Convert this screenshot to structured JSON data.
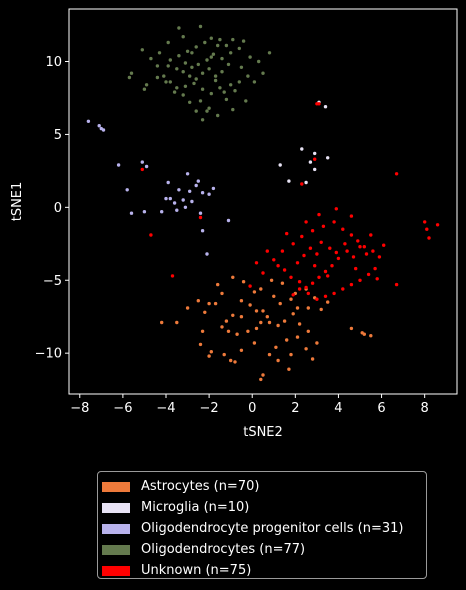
{
  "chart_data": {
    "type": "scatter",
    "xlabel": "tSNE2",
    "ylabel": "tSNE1",
    "xlim": [
      -8.5,
      9.5
    ],
    "ylim": [
      -12.8,
      13.6
    ],
    "xticks": [
      -8,
      -6,
      -4,
      -2,
      0,
      2,
      4,
      6,
      8
    ],
    "yticks": [
      -10,
      -5,
      0,
      5,
      10
    ],
    "legend_position": "below",
    "series": [
      {
        "name": "Astrocytes (n=70)",
        "color": "#ee7a3b",
        "points": [
          [
            0.5,
            -11.5
          ],
          [
            0.4,
            -11.8
          ],
          [
            -0.8,
            -10.6
          ],
          [
            -1.3,
            -10.1
          ],
          [
            -1.0,
            -10.5
          ],
          [
            -2.0,
            -10.2
          ],
          [
            -1.9,
            -9.9
          ],
          [
            -2.4,
            -9.4
          ],
          [
            -3.5,
            -7.9
          ],
          [
            -4.2,
            -7.9
          ],
          [
            -3.0,
            -6.9
          ],
          [
            -2.2,
            -7.2
          ],
          [
            -2.0,
            -6.6
          ],
          [
            -1.7,
            -6.6
          ],
          [
            -1.4,
            -5.9
          ],
          [
            -0.9,
            -4.8
          ],
          [
            -0.4,
            -5.1
          ],
          [
            0.1,
            -5.8
          ],
          [
            0.4,
            -5.6
          ],
          [
            0.9,
            -5.0
          ],
          [
            1.0,
            -6.1
          ],
          [
            1.3,
            -6.6
          ],
          [
            -0.5,
            -6.4
          ],
          [
            -0.1,
            -6.7
          ],
          [
            0.2,
            -7.1
          ],
          [
            0.5,
            -7.1
          ],
          [
            0.7,
            -7.5
          ],
          [
            -0.5,
            -7.5
          ],
          [
            -0.9,
            -7.4
          ],
          [
            -1.2,
            -7.8
          ],
          [
            -1.4,
            -8.2
          ],
          [
            -1.1,
            -8.5
          ],
          [
            -0.7,
            -8.7
          ],
          [
            -0.2,
            -8.5
          ],
          [
            0.2,
            -8.3
          ],
          [
            0.4,
            -7.9
          ],
          [
            0.8,
            -7.9
          ],
          [
            1.2,
            -8.1
          ],
          [
            1.5,
            -7.8
          ],
          [
            1.9,
            -7.3
          ],
          [
            2.1,
            -6.9
          ],
          [
            2.6,
            -6.9
          ],
          [
            3.2,
            -7.0
          ],
          [
            3.5,
            -6.5
          ],
          [
            2.9,
            -6.2
          ],
          [
            2.5,
            -5.6
          ],
          [
            2.0,
            -5.9
          ],
          [
            1.4,
            -5.2
          ],
          [
            1.8,
            -6.3
          ],
          [
            2.2,
            -8.0
          ],
          [
            2.6,
            -8.5
          ],
          [
            2.1,
            -8.9
          ],
          [
            1.6,
            -9.1
          ],
          [
            1.1,
            -9.6
          ],
          [
            0.8,
            -10.1
          ],
          [
            1.2,
            -10.5
          ],
          [
            1.8,
            -10.1
          ],
          [
            2.5,
            -9.7
          ],
          [
            2.8,
            -10.4
          ],
          [
            1.7,
            -11.1
          ],
          [
            -2.5,
            -6.4
          ],
          [
            -1.6,
            -5.3
          ],
          [
            -2.3,
            -8.5
          ],
          [
            -0.5,
            -9.8
          ],
          [
            0.1,
            -9.3
          ],
          [
            3.0,
            -9.3
          ],
          [
            4.6,
            -8.3
          ],
          [
            5.1,
            -8.6
          ],
          [
            5.2,
            -8.7
          ],
          [
            5.5,
            -8.8
          ]
        ]
      },
      {
        "name": "Microglia (n=10)",
        "color": "#e8e3f5",
        "points": [
          [
            1.3,
            2.9
          ],
          [
            1.7,
            1.8
          ],
          [
            2.3,
            4.0
          ],
          [
            2.7,
            3.1
          ],
          [
            2.9,
            3.7
          ],
          [
            3.5,
            3.4
          ],
          [
            3.4,
            6.9
          ],
          [
            2.5,
            1.7
          ],
          [
            2.9,
            2.6
          ],
          [
            3.1,
            7.2
          ]
        ]
      },
      {
        "name": "Oligodendrocyte progenitor cells (n=31)",
        "color": "#b8b2ec",
        "points": [
          [
            -7.6,
            5.9
          ],
          [
            -7.1,
            5.6
          ],
          [
            -7.0,
            5.4
          ],
          [
            -6.9,
            5.3
          ],
          [
            -6.2,
            2.9
          ],
          [
            -5.1,
            3.1
          ],
          [
            -4.9,
            2.8
          ],
          [
            -5.8,
            1.2
          ],
          [
            -5.0,
            -0.3
          ],
          [
            -5.6,
            -0.4
          ],
          [
            -4.2,
            -0.3
          ],
          [
            -4.0,
            0.6
          ],
          [
            -3.8,
            0.6
          ],
          [
            -3.6,
            0.3
          ],
          [
            -3.5,
            -0.2
          ],
          [
            -3.1,
            0.0
          ],
          [
            -2.8,
            0.4
          ],
          [
            -2.9,
            1.1
          ],
          [
            -2.6,
            1.5
          ],
          [
            -2.3,
            1.0
          ],
          [
            -2.0,
            0.9
          ],
          [
            -1.8,
            1.3
          ],
          [
            -3.0,
            2.3
          ],
          [
            -3.9,
            1.7
          ],
          [
            -3.4,
            1.2
          ],
          [
            -3.2,
            0.5
          ],
          [
            -2.4,
            -0.4
          ],
          [
            -2.3,
            -1.6
          ],
          [
            -2.1,
            -3.2
          ],
          [
            -1.1,
            -0.9
          ],
          [
            -2.5,
            1.8
          ]
        ]
      },
      {
        "name": "Oligodendrocytes (n=77)",
        "color": "#647a4e",
        "points": [
          [
            -5.1,
            10.8
          ],
          [
            -4.7,
            10.2
          ],
          [
            -4.4,
            9.7
          ],
          [
            -4.1,
            9.0
          ],
          [
            -3.8,
            8.6
          ],
          [
            -3.5,
            8.2
          ],
          [
            -3.2,
            7.7
          ],
          [
            -2.9,
            7.2
          ],
          [
            -2.6,
            6.6
          ],
          [
            -2.3,
            6.0
          ],
          [
            -2.0,
            6.8
          ],
          [
            -1.6,
            6.3
          ],
          [
            -1.2,
            7.4
          ],
          [
            -0.8,
            8.0
          ],
          [
            -0.3,
            7.3
          ],
          [
            0.1,
            8.6
          ],
          [
            0.5,
            9.2
          ],
          [
            0.3,
            10.0
          ],
          [
            0.8,
            10.6
          ],
          [
            -0.1,
            10.3
          ],
          [
            -0.6,
            10.9
          ],
          [
            -0.9,
            11.5
          ],
          [
            -1.6,
            11.1
          ],
          [
            -1.9,
            11.6
          ],
          [
            -2.4,
            12.4
          ],
          [
            -3.4,
            12.3
          ],
          [
            -3.9,
            11.3
          ],
          [
            -4.3,
            10.6
          ],
          [
            -5.6,
            9.2
          ],
          [
            -5.7,
            8.9
          ],
          [
            -5.0,
            8.1
          ],
          [
            -4.9,
            8.4
          ],
          [
            -3.5,
            9.5
          ],
          [
            -3.2,
            9.3
          ],
          [
            -2.9,
            9.0
          ],
          [
            -2.6,
            8.8
          ],
          [
            -2.3,
            9.2
          ],
          [
            -2.0,
            9.5
          ],
          [
            -1.7,
            9.0
          ],
          [
            -1.4,
            9.3
          ],
          [
            -1.1,
            9.8
          ],
          [
            -1.4,
            10.2
          ],
          [
            -1.8,
            10.5
          ],
          [
            -2.1,
            10.1
          ],
          [
            -2.5,
            9.8
          ],
          [
            -2.8,
            9.6
          ],
          [
            -3.1,
            9.9
          ],
          [
            -3.4,
            10.4
          ],
          [
            -3.0,
            10.7
          ],
          [
            -2.6,
            11.0
          ],
          [
            -2.2,
            11.3
          ],
          [
            -1.5,
            11.5
          ],
          [
            -1.0,
            10.6
          ],
          [
            -0.5,
            9.6
          ],
          [
            -0.2,
            9.0
          ],
          [
            -0.6,
            8.6
          ],
          [
            -1.0,
            8.4
          ],
          [
            -1.5,
            8.2
          ],
          [
            -1.9,
            7.8
          ],
          [
            -2.3,
            8.1
          ],
          [
            -2.7,
            8.5
          ],
          [
            -3.1,
            8.3
          ],
          [
            -3.6,
            7.9
          ],
          [
            -4.0,
            8.6
          ],
          [
            -4.4,
            8.9
          ],
          [
            -3.8,
            10.1
          ],
          [
            -3.2,
            11.7
          ],
          [
            -2.8,
            10.6
          ],
          [
            -1.3,
            7.9
          ],
          [
            -0.9,
            6.7
          ],
          [
            -2.4,
            7.3
          ],
          [
            -0.4,
            11.4
          ],
          [
            -1.2,
            11.1
          ],
          [
            -1.9,
            10.3
          ],
          [
            -2.1,
            6.6
          ],
          [
            -1.7,
            8.7
          ],
          [
            -3.9,
            9.7
          ]
        ]
      },
      {
        "name": "Unknown (n=75)",
        "color": "#ff0000",
        "points": [
          [
            3.0,
            7.1
          ],
          [
            3.1,
            7.1
          ],
          [
            2.3,
            1.6
          ],
          [
            2.9,
            3.3
          ],
          [
            -5.1,
            2.6
          ],
          [
            -3.7,
            -4.7
          ],
          [
            -4.7,
            -1.9
          ],
          [
            -2.4,
            -0.7
          ],
          [
            6.7,
            2.3
          ],
          [
            8.0,
            -1.0
          ],
          [
            8.1,
            -1.5
          ],
          [
            8.2,
            -2.1
          ],
          [
            8.6,
            -1.2
          ],
          [
            6.7,
            -5.3
          ],
          [
            5.3,
            -3.2
          ],
          [
            5.0,
            -2.7
          ],
          [
            4.7,
            -3.4
          ],
          [
            4.4,
            -3.0
          ],
          [
            4.0,
            -3.5
          ],
          [
            3.7,
            -4.0
          ],
          [
            3.4,
            -4.4
          ],
          [
            3.1,
            -4.8
          ],
          [
            2.8,
            -5.2
          ],
          [
            2.5,
            -5.5
          ],
          [
            2.2,
            -5.1
          ],
          [
            1.8,
            -4.8
          ],
          [
            1.5,
            -4.3
          ],
          [
            1.2,
            -4.0
          ],
          [
            1.0,
            -3.6
          ],
          [
            1.4,
            -3.0
          ],
          [
            1.9,
            -2.5
          ],
          [
            2.3,
            -2.0
          ],
          [
            2.8,
            -1.6
          ],
          [
            3.3,
            -1.3
          ],
          [
            3.8,
            -1.0
          ],
          [
            4.2,
            -1.5
          ],
          [
            4.6,
            -1.9
          ],
          [
            4.9,
            -2.3
          ],
          [
            5.2,
            -2.7
          ],
          [
            5.6,
            -3.0
          ],
          [
            5.9,
            -3.4
          ],
          [
            5.7,
            -4.2
          ],
          [
            5.4,
            -4.6
          ],
          [
            5.0,
            -5.0
          ],
          [
            4.6,
            -5.3
          ],
          [
            4.2,
            -5.6
          ],
          [
            3.8,
            -5.9
          ],
          [
            3.4,
            -6.1
          ],
          [
            3.0,
            -6.3
          ],
          [
            2.6,
            -5.9
          ],
          [
            2.2,
            -5.6
          ],
          [
            1.9,
            -6.0
          ],
          [
            3.2,
            -2.4
          ],
          [
            3.6,
            -2.8
          ],
          [
            3.9,
            -3.1
          ],
          [
            4.3,
            -2.5
          ],
          [
            3.0,
            -3.2
          ],
          [
            2.7,
            -2.8
          ],
          [
            2.4,
            -3.3
          ],
          [
            2.1,
            -3.8
          ],
          [
            0.7,
            -3.0
          ],
          [
            0.2,
            -3.8
          ],
          [
            0.5,
            -4.5
          ],
          [
            -0.1,
            -5.4
          ],
          [
            1.6,
            -1.8
          ],
          [
            2.5,
            -1.0
          ],
          [
            3.1,
            -0.5
          ],
          [
            3.9,
            -0.1
          ],
          [
            4.6,
            -0.6
          ],
          [
            5.5,
            -1.9
          ],
          [
            6.1,
            -2.6
          ],
          [
            5.8,
            -4.9
          ],
          [
            4.8,
            -4.2
          ],
          [
            3.5,
            -4.7
          ],
          [
            2.9,
            -4.0
          ]
        ]
      }
    ]
  }
}
